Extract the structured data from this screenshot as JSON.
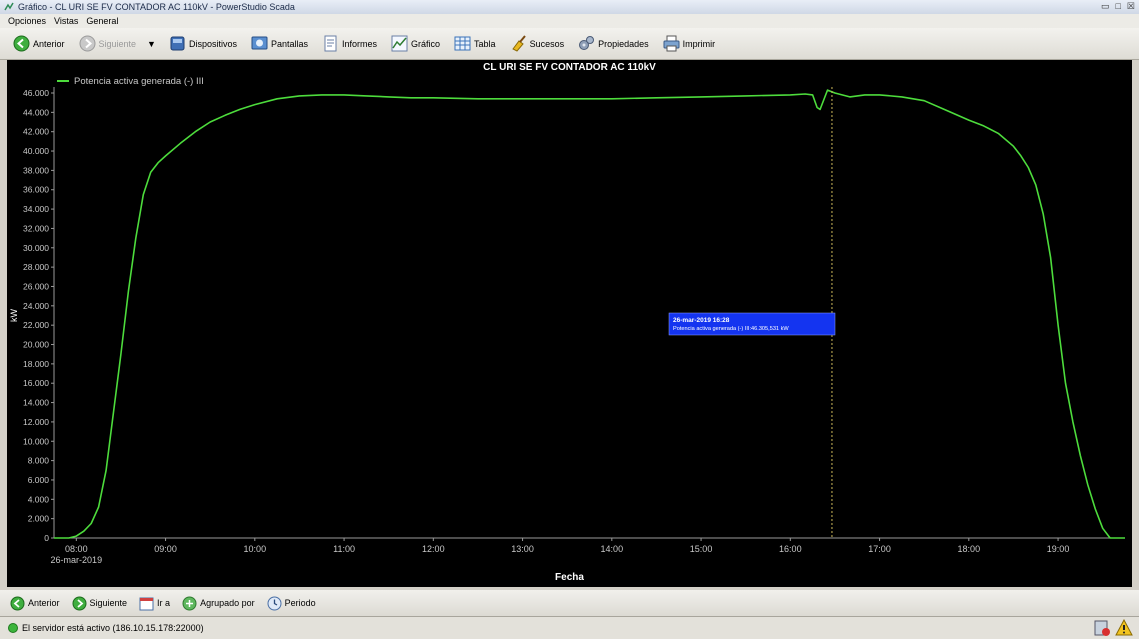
{
  "window": {
    "title": "Gráfico - CL URI SE FV CONTADOR AC 110kV - PowerStudio Scada",
    "controls": [
      "restore",
      "maximize",
      "close"
    ]
  },
  "menu": [
    "Opciones",
    "Vistas",
    "General"
  ],
  "toolbar": {
    "back": "Anterior",
    "forward": "Siguiente",
    "devices": "Dispositivos",
    "screens": "Pantallas",
    "reports": "Informes",
    "chart": "Gráfico",
    "table": "Tabla",
    "events": "Sucesos",
    "properties": "Propiedades",
    "print": "Imprimir"
  },
  "colors": {
    "line": "#4ddc3c",
    "cursor_line": "#cbb85a",
    "tooltip_bg": "#1434f0",
    "plot_bg": "#000000",
    "axis_text": "#c8c8c8"
  },
  "tooltip": {
    "line1": "26-mar-2019 16:28",
    "line2": "Potencia activa generada (-) III:46.305,531 kW"
  },
  "chart_data": {
    "type": "line",
    "title": "CL URI SE FV CONTADOR AC 110kV",
    "xlabel": "Fecha",
    "ylabel": "kW",
    "date_label": "26-mar-2019",
    "ylim": [
      0,
      46000
    ],
    "xlim": [
      "07:45",
      "19:45"
    ],
    "yticks": [
      "0",
      "2.000",
      "4.000",
      "6.000",
      "8.000",
      "10.000",
      "12.000",
      "14.000",
      "16.000",
      "18.000",
      "20.000",
      "22.000",
      "24.000",
      "26.000",
      "28.000",
      "30.000",
      "32.000",
      "34.000",
      "36.000",
      "38.000",
      "40.000",
      "42.000",
      "44.000",
      "46.000"
    ],
    "xticks": [
      "08:00",
      "09:00",
      "10:00",
      "11:00",
      "12:00",
      "13:00",
      "14:00",
      "15:00",
      "16:00",
      "17:00",
      "18:00",
      "19:00"
    ],
    "cursor_x": "16:28",
    "grid": false,
    "legend_position": "top-left",
    "series": [
      {
        "name": "Potencia activa generada (-) III",
        "x": [
          "07:45",
          "07:55",
          "08:00",
          "08:05",
          "08:10",
          "08:15",
          "08:20",
          "08:25",
          "08:30",
          "08:35",
          "08:40",
          "08:45",
          "08:50",
          "08:55",
          "09:00",
          "09:10",
          "09:20",
          "09:30",
          "09:40",
          "09:50",
          "10:00",
          "10:15",
          "10:30",
          "10:45",
          "11:00",
          "11:15",
          "11:30",
          "11:45",
          "12:00",
          "12:30",
          "13:00",
          "13:30",
          "14:00",
          "14:30",
          "15:00",
          "15:30",
          "16:00",
          "16:10",
          "16:15",
          "16:18",
          "16:20",
          "16:25",
          "16:30",
          "16:40",
          "16:50",
          "17:00",
          "17:15",
          "17:30",
          "17:45",
          "18:00",
          "18:10",
          "18:20",
          "18:30",
          "18:35",
          "18:40",
          "18:45",
          "18:50",
          "18:55",
          "19:00",
          "19:05",
          "19:10",
          "19:15",
          "19:20",
          "19:25",
          "19:30",
          "19:35",
          "19:45"
        ],
        "values": [
          0,
          0,
          200,
          700,
          1500,
          3200,
          7000,
          13000,
          19000,
          25500,
          31000,
          35500,
          37800,
          38800,
          39500,
          40800,
          42000,
          43000,
          43700,
          44300,
          44800,
          45400,
          45700,
          45800,
          45800,
          45700,
          45600,
          45500,
          45500,
          45400,
          45400,
          45400,
          45400,
          45500,
          45600,
          45700,
          45800,
          45900,
          45800,
          44500,
          44300,
          46300,
          46000,
          45600,
          45800,
          45800,
          45600,
          45200,
          44200,
          43200,
          42600,
          41800,
          40500,
          39500,
          38300,
          36500,
          33500,
          29000,
          22000,
          16000,
          12000,
          8500,
          5500,
          3000,
          1000,
          0,
          0
        ]
      }
    ]
  },
  "bottom": {
    "back": "Anterior",
    "forward": "Siguiente",
    "goto": "Ir a",
    "group": "Agrupado por",
    "period": "Periodo"
  },
  "status": {
    "text": "El servidor está activo (186.10.15.178:22000)"
  }
}
